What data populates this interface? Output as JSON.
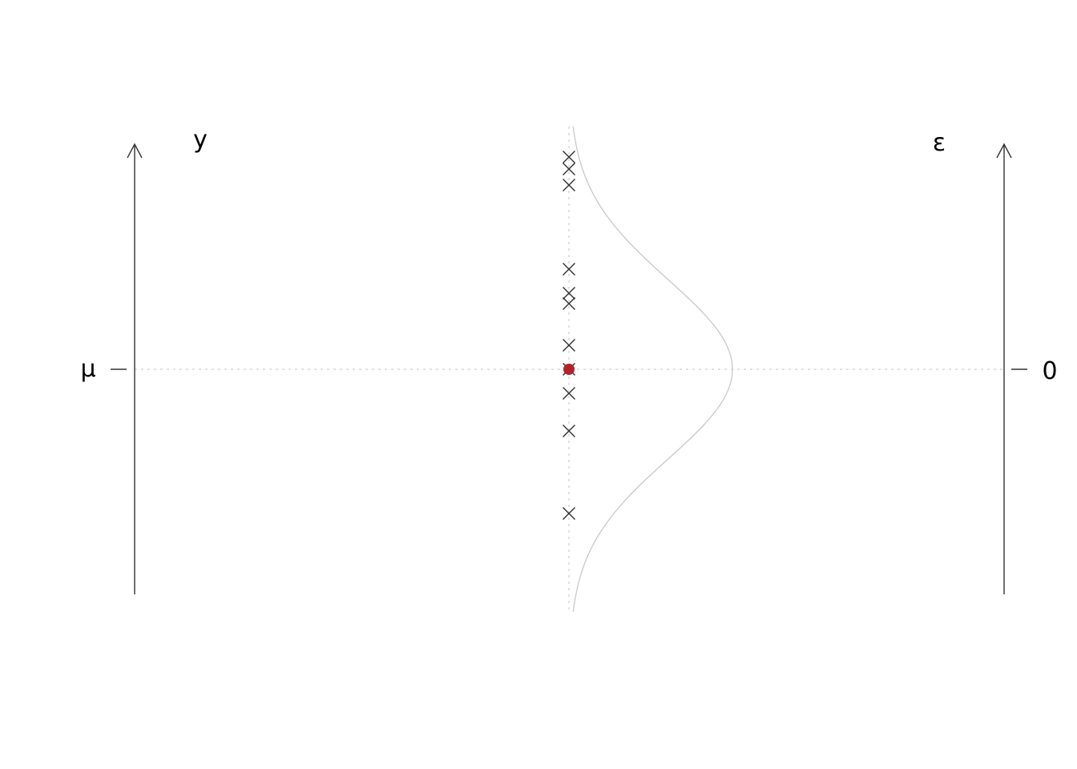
{
  "left_axis": {
    "label": "y",
    "tick_label": "μ"
  },
  "right_axis": {
    "label": "ε",
    "tick_label": "0"
  },
  "observations": [
    2.65,
    2.5,
    2.3,
    1.25,
    0.95,
    0.82,
    0.3,
    0.0,
    -0.3,
    -0.77,
    -1.8
  ],
  "mean_value": 0.0,
  "distribution": "normal",
  "colors": {
    "axis": "#333333",
    "crosses": "#333333",
    "mean_point": "#b2222b",
    "density_curve": "#c8c8c8",
    "reference_lines": "#cfcfcf"
  }
}
